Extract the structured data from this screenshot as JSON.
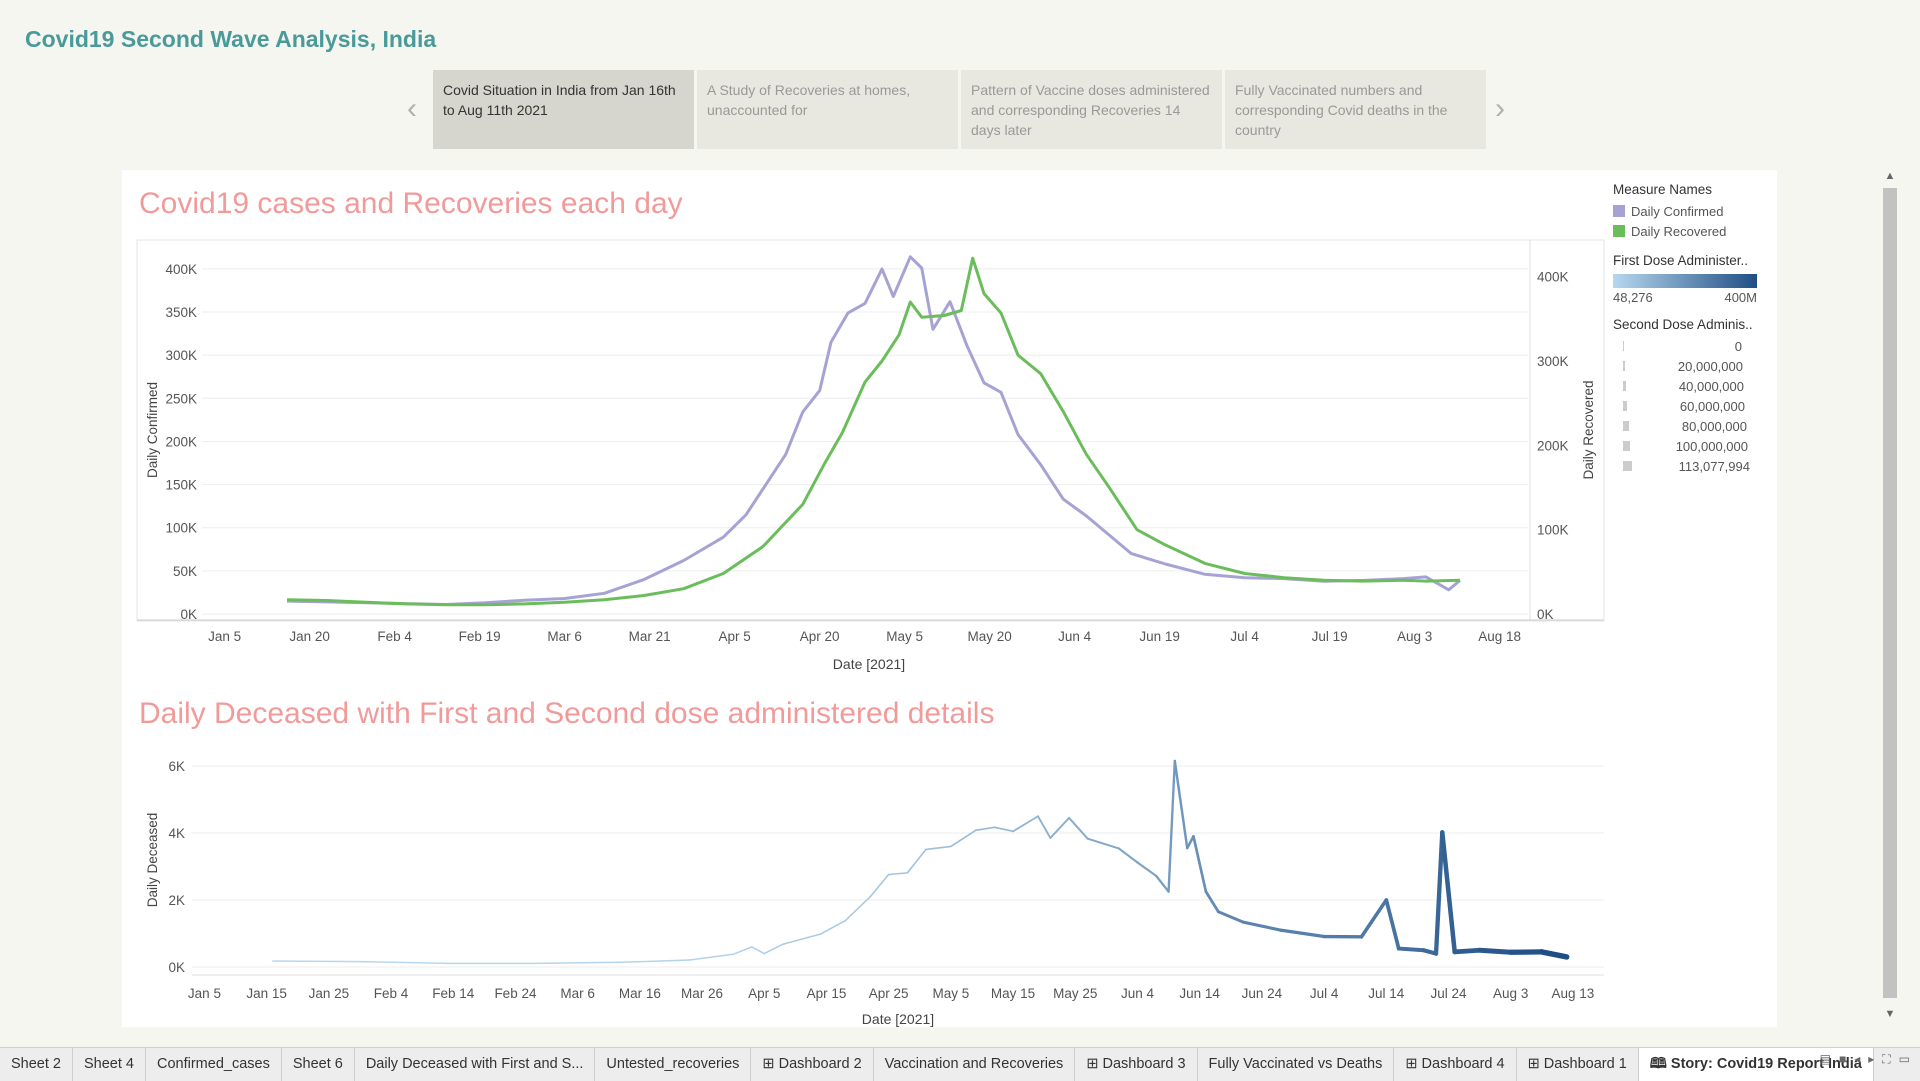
{
  "story_title": "Covid19 Second Wave Analysis, India",
  "story_points": [
    {
      "label": "Covid Situation in India from Jan 16th to Aug 11th 2021",
      "active": true
    },
    {
      "label": "A Study of Recoveries at homes, unaccounted for",
      "active": false
    },
    {
      "label": "Pattern of Vaccine doses administered and corresponding Recoveries 14 days later",
      "active": false
    },
    {
      "label": "Fully Vaccinated numbers and corresponding Covid deaths in the country",
      "active": false
    }
  ],
  "icons": {
    "prev": "chevron-left-icon",
    "next": "chevron-right-icon",
    "scroll_up": "arrow-up-icon",
    "scroll_down": "arrow-down-icon",
    "story_tab": "book-icon",
    "dashboard_tab": "grid-icon"
  },
  "symbols": {
    "prev": "‹",
    "next": "›",
    "up": "▲",
    "down": "▼",
    "grid": "⊞",
    "book": "🕮"
  },
  "legend": {
    "measure_title": "Measure Names",
    "measures": [
      {
        "name": "Daily Confirmed",
        "color": "#a6a3d4"
      },
      {
        "name": "Daily Recovered",
        "color": "#6bbd5b"
      }
    ],
    "first_dose_title": "First Dose Administer..",
    "first_dose_min": "48,276",
    "first_dose_max": "400M",
    "second_dose_title": "Second Dose Adminis..",
    "second_dose_sizes": [
      "0",
      "20,000,000",
      "40,000,000",
      "60,000,000",
      "80,000,000",
      "100,000,000",
      "113,077,994"
    ]
  },
  "tabs": [
    {
      "label": "Sheet 2",
      "icon": ""
    },
    {
      "label": "Sheet 4",
      "icon": ""
    },
    {
      "label": "Confirmed_cases",
      "icon": ""
    },
    {
      "label": "Sheet 6",
      "icon": ""
    },
    {
      "label": "Daily Deceased with First and S...",
      "icon": ""
    },
    {
      "label": "Untested_recoveries",
      "icon": ""
    },
    {
      "label": "Dashboard 2",
      "icon": "grid"
    },
    {
      "label": "Vaccination and Recoveries",
      "icon": ""
    },
    {
      "label": "Dashboard 3",
      "icon": "grid"
    },
    {
      "label": "Fully Vaccinated vs Deaths",
      "icon": ""
    },
    {
      "label": "Dashboard 4",
      "icon": "grid"
    },
    {
      "label": "Dashboard 1",
      "icon": "grid"
    },
    {
      "label": "Story: Covid19 Report India",
      "icon": "book",
      "active": true
    }
  ],
  "chart_data": [
    {
      "type": "line",
      "title": "Covid19 cases and Recoveries each day",
      "xlabel": "Date [2021]",
      "ylabel": "Daily Confirmed",
      "ylabel_right": "Daily Recovered",
      "x_ticks": [
        "Jan 5",
        "Jan 20",
        "Feb 4",
        "Feb 19",
        "Mar 6",
        "Mar 21",
        "Apr 5",
        "Apr 20",
        "May 5",
        "May 20",
        "Jun 4",
        "Jun 19",
        "Jul 4",
        "Jul 19",
        "Aug 3",
        "Aug 18"
      ],
      "x_range": [
        "2021-01-01",
        "2021-08-23"
      ],
      "ylim_left": [
        0,
        430000
      ],
      "y_ticks_left": [
        "0K",
        "50K",
        "100K",
        "150K",
        "200K",
        "250K",
        "300K",
        "350K",
        "400K"
      ],
      "ylim_right": [
        0,
        440000
      ],
      "y_ticks_right": [
        "0K",
        "100K",
        "200K",
        "300K",
        "400K"
      ],
      "grid": true,
      "series": [
        {
          "name": "Daily Confirmed",
          "color": "#a6a3d4",
          "axis": "left",
          "points": [
            [
              "2021-01-16",
              15000
            ],
            [
              "2021-01-23",
              14000
            ],
            [
              "2021-01-30",
              13000
            ],
            [
              "2021-02-06",
              12000
            ],
            [
              "2021-02-13",
              11000
            ],
            [
              "2021-02-20",
              13000
            ],
            [
              "2021-02-27",
              16000
            ],
            [
              "2021-03-06",
              18000
            ],
            [
              "2021-03-13",
              24000
            ],
            [
              "2021-03-20",
              40000
            ],
            [
              "2021-03-27",
              62000
            ],
            [
              "2021-04-03",
              89000
            ],
            [
              "2021-04-07",
              115000
            ],
            [
              "2021-04-10",
              145000
            ],
            [
              "2021-04-14",
              185000
            ],
            [
              "2021-04-17",
              234000
            ],
            [
              "2021-04-20",
              259000
            ],
            [
              "2021-04-22",
              315000
            ],
            [
              "2021-04-25",
              349000
            ],
            [
              "2021-04-28",
              360000
            ],
            [
              "2021-05-01",
              400000
            ],
            [
              "2021-05-03",
              368000
            ],
            [
              "2021-05-06",
              414000
            ],
            [
              "2021-05-08",
              401000
            ],
            [
              "2021-05-10",
              330000
            ],
            [
              "2021-05-13",
              362000
            ],
            [
              "2021-05-16",
              311000
            ],
            [
              "2021-05-19",
              268000
            ],
            [
              "2021-05-22",
              257000
            ],
            [
              "2021-05-25",
              208000
            ],
            [
              "2021-05-29",
              173000
            ],
            [
              "2021-06-02",
              133000
            ],
            [
              "2021-06-06",
              114000
            ],
            [
              "2021-06-10",
              92000
            ],
            [
              "2021-06-14",
              70000
            ],
            [
              "2021-06-20",
              58000
            ],
            [
              "2021-06-27",
              46000
            ],
            [
              "2021-07-04",
              42000
            ],
            [
              "2021-07-11",
              41000
            ],
            [
              "2021-07-18",
              38000
            ],
            [
              "2021-07-25",
              39000
            ],
            [
              "2021-08-01",
              41000
            ],
            [
              "2021-08-05",
              43000
            ],
            [
              "2021-08-09",
              28000
            ],
            [
              "2021-08-11",
              39000
            ]
          ]
        },
        {
          "name": "Daily Recovered",
          "color": "#6bbd5b",
          "axis": "right",
          "points": [
            [
              "2021-01-16",
              17000
            ],
            [
              "2021-01-23",
              16000
            ],
            [
              "2021-01-30",
              14000
            ],
            [
              "2021-02-06",
              12000
            ],
            [
              "2021-02-13",
              11000
            ],
            [
              "2021-02-20",
              11000
            ],
            [
              "2021-02-27",
              12000
            ],
            [
              "2021-03-06",
              14000
            ],
            [
              "2021-03-13",
              17000
            ],
            [
              "2021-03-20",
              22000
            ],
            [
              "2021-03-27",
              30000
            ],
            [
              "2021-04-03",
              48000
            ],
            [
              "2021-04-10",
              80000
            ],
            [
              "2021-04-17",
              130000
            ],
            [
              "2021-04-21",
              180000
            ],
            [
              "2021-04-24",
              215000
            ],
            [
              "2021-04-28",
              275000
            ],
            [
              "2021-05-01",
              300000
            ],
            [
              "2021-05-04",
              331000
            ],
            [
              "2021-05-06",
              370000
            ],
            [
              "2021-05-08",
              352000
            ],
            [
              "2021-05-12",
              354000
            ],
            [
              "2021-05-15",
              360000
            ],
            [
              "2021-05-17",
              422000
            ],
            [
              "2021-05-19",
              380000
            ],
            [
              "2021-05-22",
              357000
            ],
            [
              "2021-05-25",
              307000
            ],
            [
              "2021-05-29",
              285000
            ],
            [
              "2021-06-02",
              240000
            ],
            [
              "2021-06-06",
              190000
            ],
            [
              "2021-06-10",
              151000
            ],
            [
              "2021-06-15",
              100000
            ],
            [
              "2021-06-20",
              82000
            ],
            [
              "2021-06-27",
              60000
            ],
            [
              "2021-07-04",
              48000
            ],
            [
              "2021-07-11",
              43000
            ],
            [
              "2021-07-18",
              40000
            ],
            [
              "2021-07-25",
              39000
            ],
            [
              "2021-08-01",
              40000
            ],
            [
              "2021-08-05",
              39000
            ],
            [
              "2021-08-11",
              40000
            ]
          ]
        }
      ]
    },
    {
      "type": "line",
      "title": "Daily Deceased with First and Second dose administered details",
      "xlabel": "Date [2021]",
      "ylabel": "Daily Deceased",
      "x_ticks": [
        "Jan 5",
        "Jan 15",
        "Jan 25",
        "Feb 4",
        "Feb 14",
        "Feb 24",
        "Mar 6",
        "Mar 16",
        "Mar 26",
        "Apr 5",
        "Apr 15",
        "Apr 25",
        "May 5",
        "May 15",
        "May 25",
        "Jun 4",
        "Jun 14",
        "Jun 24",
        "Jul 4",
        "Jul 14",
        "Jul 24",
        "Aug 3",
        "Aug 13"
      ],
      "x_range": [
        "2021-01-03",
        "2021-08-18"
      ],
      "ylim": [
        0,
        6000
      ],
      "y_ticks": [
        "0K",
        "2K",
        "4K",
        "6K"
      ],
      "grid": true,
      "color_encoding": "First Dose Administered (light to dark blue)",
      "size_encoding": "Second Dose Administered (line thickness)",
      "color_light": "#b7d7ee",
      "color_dark": "#1f4e85",
      "series": [
        {
          "name": "Daily Deceased",
          "points": [
            [
              "2021-01-16",
              180
            ],
            [
              "2021-01-30",
              160
            ],
            [
              "2021-02-13",
              110
            ],
            [
              "2021-02-27",
              110
            ],
            [
              "2021-03-13",
              140
            ],
            [
              "2021-03-24",
              210
            ],
            [
              "2021-03-31",
              380
            ],
            [
              "2021-04-03",
              600
            ],
            [
              "2021-04-05",
              400
            ],
            [
              "2021-04-08",
              680
            ],
            [
              "2021-04-14",
              980
            ],
            [
              "2021-04-18",
              1380
            ],
            [
              "2021-04-22",
              2090
            ],
            [
              "2021-04-25",
              2760
            ],
            [
              "2021-04-28",
              2810
            ],
            [
              "2021-05-01",
              3510
            ],
            [
              "2021-05-05",
              3600
            ],
            [
              "2021-05-09",
              4080
            ],
            [
              "2021-05-12",
              4170
            ],
            [
              "2021-05-15",
              4050
            ],
            [
              "2021-05-19",
              4500
            ],
            [
              "2021-05-21",
              3850
            ],
            [
              "2021-05-24",
              4450
            ],
            [
              "2021-05-27",
              3830
            ],
            [
              "2021-06-01",
              3540
            ],
            [
              "2021-06-04",
              3120
            ],
            [
              "2021-06-07",
              2720
            ],
            [
              "2021-06-09",
              2250
            ],
            [
              "2021-06-10",
              6150
            ],
            [
              "2021-06-12",
              3550
            ],
            [
              "2021-06-13",
              3900
            ],
            [
              "2021-06-15",
              2250
            ],
            [
              "2021-06-17",
              1650
            ],
            [
              "2021-06-21",
              1340
            ],
            [
              "2021-06-27",
              1100
            ],
            [
              "2021-07-04",
              910
            ],
            [
              "2021-07-10",
              900
            ],
            [
              "2021-07-14",
              2000
            ],
            [
              "2021-07-16",
              550
            ],
            [
              "2021-07-20",
              500
            ],
            [
              "2021-07-22",
              400
            ],
            [
              "2021-07-23",
              4020
            ],
            [
              "2021-07-25",
              450
            ],
            [
              "2021-07-29",
              500
            ],
            [
              "2021-08-03",
              440
            ],
            [
              "2021-08-08",
              450
            ],
            [
              "2021-08-12",
              300
            ]
          ]
        }
      ]
    }
  ]
}
